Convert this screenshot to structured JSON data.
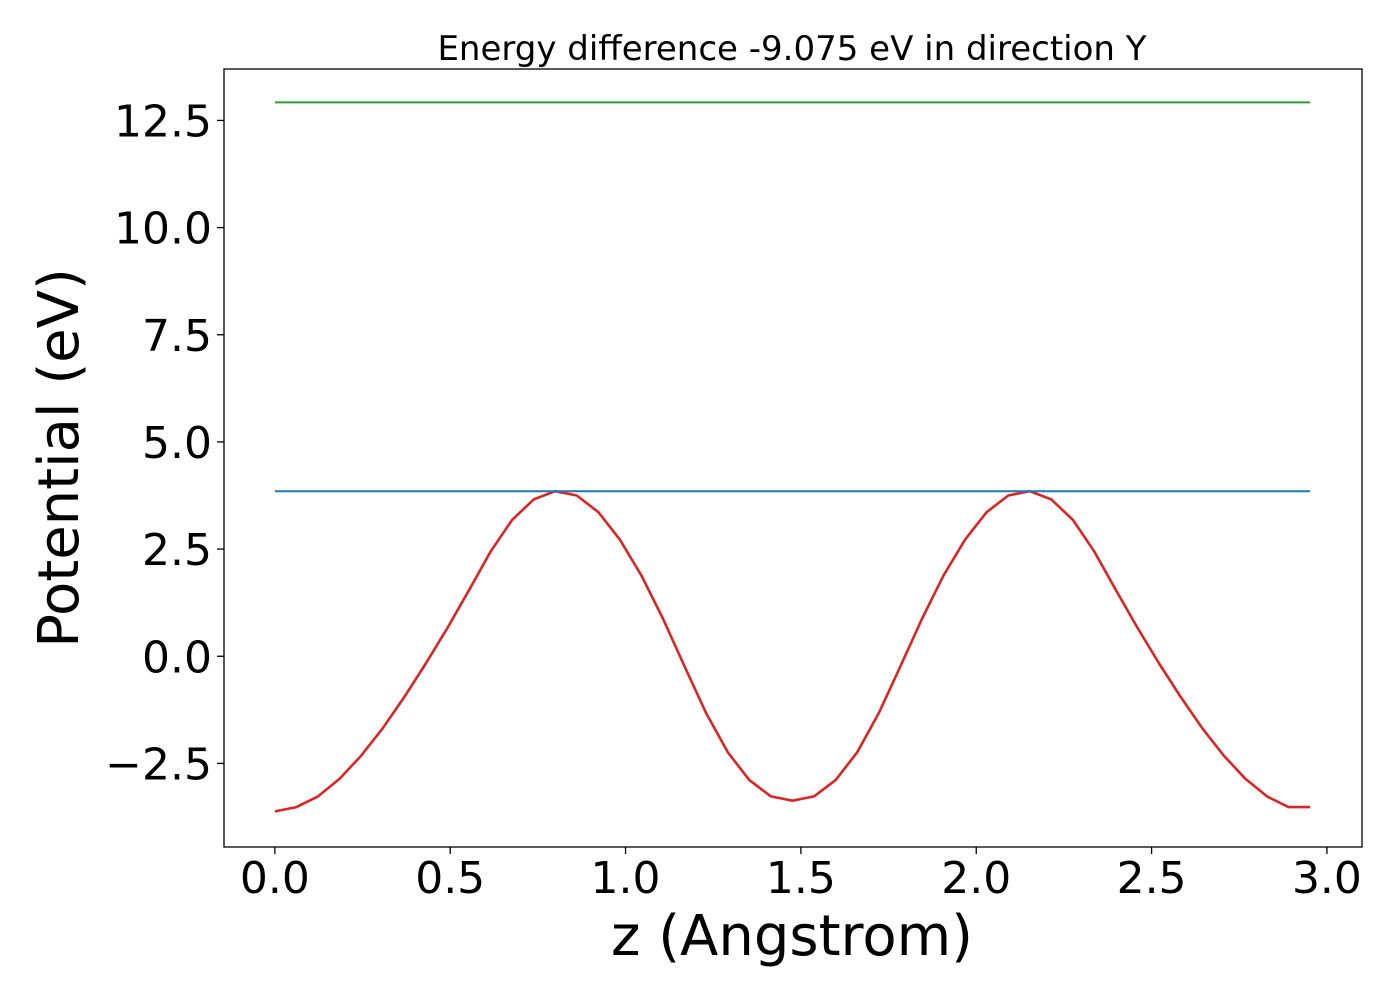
{
  "chart_data": {
    "type": "line",
    "title": "Energy difference -9.075 eV in direction Y",
    "xlabel": "z (Angstrom)",
    "ylabel": "Potential (eV)",
    "xlim": [
      -0.145,
      3.1
    ],
    "ylim": [
      -4.45,
      13.7
    ],
    "grid": false,
    "legend": "none",
    "x_ticks": [
      0.0,
      0.5,
      1.0,
      1.5,
      2.0,
      2.5,
      3.0
    ],
    "x_tick_labels": [
      "0.0",
      "0.5",
      "1.0",
      "1.5",
      "2.0",
      "2.5",
      "3.0"
    ],
    "y_ticks": [
      -2.5,
      0.0,
      2.5,
      5.0,
      7.5,
      10.0,
      12.5
    ],
    "y_tick_labels": [
      "−2.5",
      "0.0",
      "2.5",
      "5.0",
      "7.5",
      "10.0",
      "12.5"
    ],
    "series": [
      {
        "color": "#d62728",
        "x": [
          0.0,
          0.0615,
          0.123,
          0.1845,
          0.246,
          0.3075,
          0.369,
          0.4305,
          0.492,
          0.5535,
          0.615,
          0.6765,
          0.738,
          0.7995,
          0.861,
          0.9225,
          0.984,
          1.0455,
          1.107,
          1.1685,
          1.23,
          1.2915,
          1.353,
          1.4145,
          1.476,
          1.5375,
          1.599,
          1.6605,
          1.722,
          1.7835,
          1.845,
          1.9065,
          1.968,
          2.0295,
          2.091,
          2.1525,
          2.214,
          2.2755,
          2.337,
          2.3985,
          2.46,
          2.5215,
          2.583,
          2.6445,
          2.706,
          2.7675,
          2.829,
          2.8905,
          2.952
        ],
        "y": [
          -3.62,
          -3.52,
          -3.27,
          -2.86,
          -2.32,
          -1.68,
          -0.95,
          -0.17,
          0.66,
          1.54,
          2.44,
          3.18,
          3.66,
          3.85,
          3.75,
          3.36,
          2.72,
          1.88,
          0.87,
          -0.24,
          -1.33,
          -2.24,
          -2.89,
          -3.27,
          -3.37,
          -3.27,
          -2.89,
          -2.24,
          -1.33,
          -0.24,
          0.87,
          1.88,
          2.72,
          3.36,
          3.75,
          3.85,
          3.66,
          3.18,
          2.44,
          1.54,
          0.66,
          -0.17,
          -0.95,
          -1.68,
          -2.32,
          -2.86,
          -3.27,
          -3.52,
          -3.52
        ]
      },
      {
        "color": "#1f77b4",
        "x": [
          0.0,
          2.952
        ],
        "y": [
          3.85,
          3.85
        ]
      },
      {
        "color": "#2ca02c",
        "x": [
          0.0,
          2.952
        ],
        "y": [
          12.92,
          12.92
        ]
      }
    ]
  }
}
